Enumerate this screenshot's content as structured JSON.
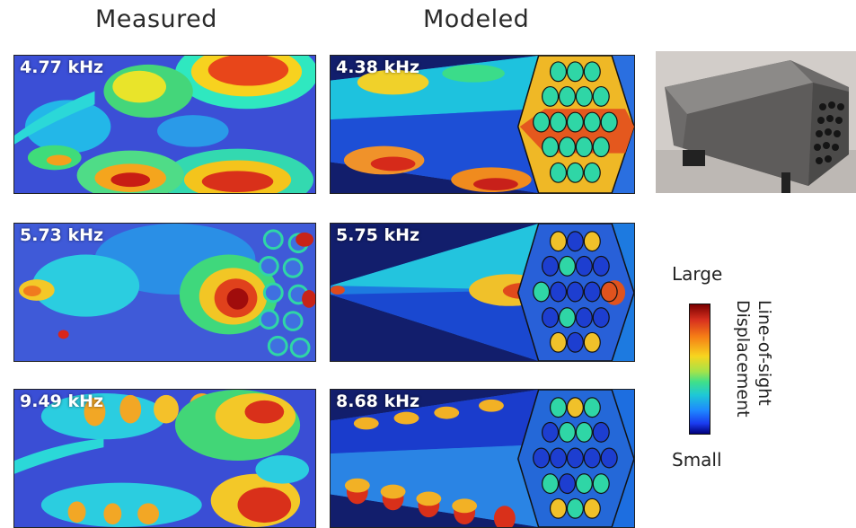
{
  "headers": {
    "measured": "Measured",
    "modeled": "Modeled"
  },
  "rows": [
    {
      "measured_freq": "4.77 kHz",
      "modeled_freq": "4.38 kHz"
    },
    {
      "measured_freq": "5.73 kHz",
      "modeled_freq": "5.75 kHz"
    },
    {
      "measured_freq": "9.49 kHz",
      "modeled_freq": "8.68 kHz"
    }
  ],
  "colorbar": {
    "top_label": "Large",
    "bottom_label": "Small",
    "title_line1": "Line-of-sight",
    "title_line2": "Displacement"
  },
  "colors": {
    "panel_bg_dark": "#0d1a6e",
    "measured_bg": "#3a3fd0",
    "modeled_bg": "#111d6b"
  }
}
